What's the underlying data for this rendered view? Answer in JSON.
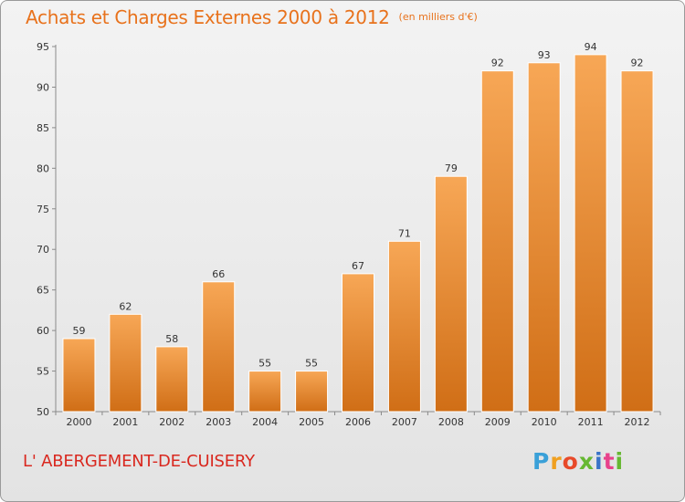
{
  "title": "Achats et Charges Externes 2000 à 2012",
  "unit": "(en milliers d'€)",
  "commune": "L' ABERGEMENT-DE-CUISERY",
  "logo": {
    "letters": [
      "P",
      "r",
      "o",
      "x",
      "i",
      "t",
      "i"
    ],
    "colors": [
      "#3aa0d8",
      "#f0a020",
      "#e84a2a",
      "#66b832",
      "#3a74c8",
      "#e8428c",
      "#66b832"
    ]
  },
  "colors": {
    "bar_light": "#f7a756",
    "bar_dark": "#d06e16",
    "title": "#e8721c",
    "commune": "#d9281f"
  },
  "chart_data": {
    "type": "bar",
    "title": "Achats et Charges Externes 2000 à 2012",
    "ylabel": "",
    "xlabel": "",
    "categories": [
      "2000",
      "2001",
      "2002",
      "2003",
      "2004",
      "2005",
      "2006",
      "2007",
      "2008",
      "2009",
      "2010",
      "2011",
      "2012"
    ],
    "values": [
      59,
      62,
      58,
      66,
      55,
      55,
      67,
      71,
      79,
      92,
      93,
      94,
      92
    ],
    "ylim": [
      50,
      95
    ],
    "yticks": [
      50,
      55,
      60,
      65,
      70,
      75,
      80,
      85,
      90,
      95
    ],
    "grid": false,
    "legend": "none"
  }
}
